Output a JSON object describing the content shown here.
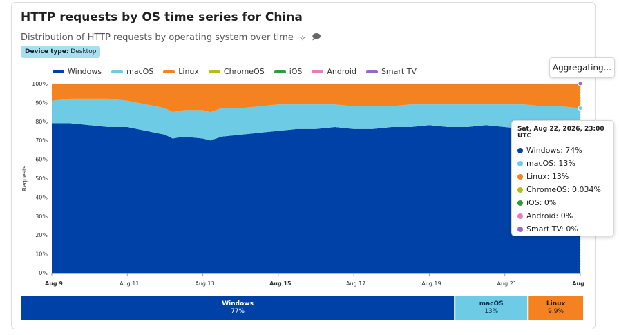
{
  "header": {
    "title": "HTTP requests by OS time series for China",
    "subtitle": "Distribution of HTTP requests by operating system over time",
    "badge_label": "Device type:",
    "badge_value": "Desktop"
  },
  "aggregating_label": "Aggregating...",
  "legend": [
    {
      "name": "Windows",
      "color": "#0041a8"
    },
    {
      "name": "macOS",
      "color": "#6dcbe6"
    },
    {
      "name": "Linux",
      "color": "#f58220"
    },
    {
      "name": "ChromeOS",
      "color": "#b5bd13"
    },
    {
      "name": "iOS",
      "color": "#2e9c3a"
    },
    {
      "name": "Android",
      "color": "#ea79c8"
    },
    {
      "name": "Smart TV",
      "color": "#9966cc"
    }
  ],
  "tooltip": {
    "title": "Sat, Aug 22, 2026, 23:00 UTC",
    "rows": [
      {
        "label": "Windows: 74%",
        "color": "#0041a8"
      },
      {
        "label": "macOS: 13%",
        "color": "#6dcbe6"
      },
      {
        "label": "Linux: 13%",
        "color": "#f58220"
      },
      {
        "label": "ChromeOS: 0.034%",
        "color": "#b5bd13"
      },
      {
        "label": "iOS: 0%",
        "color": "#2e9c3a"
      },
      {
        "label": "Android: 0%",
        "color": "#ea79c8"
      },
      {
        "label": "Smart TV: 0%",
        "color": "#9966cc"
      }
    ]
  },
  "chart_data": [
    {
      "type": "area",
      "title": "",
      "xlabel": "",
      "ylabel": "Requests",
      "ylim": [
        0,
        100
      ],
      "stacked": true,
      "y_ticks": [
        "0%",
        "10%",
        "20%",
        "30%",
        "40%",
        "50%",
        "60%",
        "70%",
        "80%",
        "90%",
        "100%"
      ],
      "x_ticks": [
        {
          "label": "Aug 9",
          "day": 0,
          "bold": true
        },
        {
          "label": "Aug 11",
          "day": 2,
          "bold": false
        },
        {
          "label": "Aug 13",
          "day": 4,
          "bold": false
        },
        {
          "label": "Aug 15",
          "day": 6,
          "bold": true
        },
        {
          "label": "Aug 17",
          "day": 8,
          "bold": false
        },
        {
          "label": "Aug 19",
          "day": 10,
          "bold": false
        },
        {
          "label": "Aug 21",
          "day": 12,
          "bold": false
        },
        {
          "label": "Aug",
          "day": 14,
          "bold": true
        }
      ],
      "x_days": [
        0,
        0.5,
        1,
        1.5,
        2,
        2.5,
        3,
        3.2,
        3.5,
        4,
        4.2,
        4.5,
        5,
        5.5,
        6,
        6.5,
        7,
        7.5,
        8,
        8.5,
        9,
        9.5,
        10,
        10.5,
        11,
        11.5,
        12,
        12.5,
        13,
        13.5,
        14
      ],
      "series": [
        {
          "name": "Windows",
          "color": "#0041a8",
          "values": [
            79,
            79,
            78,
            77,
            77,
            75,
            73,
            71,
            72,
            71,
            70,
            72,
            73,
            74,
            75,
            76,
            76,
            77,
            76,
            76,
            77,
            77,
            78,
            77,
            77,
            78,
            77,
            76,
            75,
            75,
            74
          ]
        },
        {
          "name": "macOS",
          "color": "#6dcbe6",
          "values": [
            12,
            13,
            14,
            15,
            14,
            14,
            14,
            14,
            14,
            15,
            15,
            15,
            14,
            14,
            14,
            13,
            13,
            12,
            12,
            12,
            11,
            12,
            11,
            12,
            12,
            11,
            12,
            13,
            13,
            13,
            13
          ]
        },
        {
          "name": "Linux",
          "color": "#f58220",
          "values": [
            9,
            8,
            8,
            8,
            9,
            11,
            13,
            15,
            14,
            14,
            15,
            13,
            13,
            12,
            11,
            11,
            11,
            11,
            12,
            12,
            12,
            11,
            11,
            11,
            11,
            11,
            11,
            11,
            12,
            12,
            13
          ]
        }
      ]
    },
    {
      "type": "bar",
      "orientation": "horizontal-stacked",
      "xlim": [
        0,
        100
      ],
      "segments": [
        {
          "name": "Windows",
          "value": 77,
          "label": "77%",
          "color": "#0041a8",
          "text_color": "#ffffff"
        },
        {
          "name": "macOS",
          "value": 13,
          "label": "13%",
          "color": "#6dcbe6",
          "text_color": "#0b2a4a"
        },
        {
          "name": "Linux",
          "value": 9.9,
          "label": "9.9%",
          "color": "#f58220",
          "text_color": "#1a1a1a"
        }
      ]
    }
  ]
}
